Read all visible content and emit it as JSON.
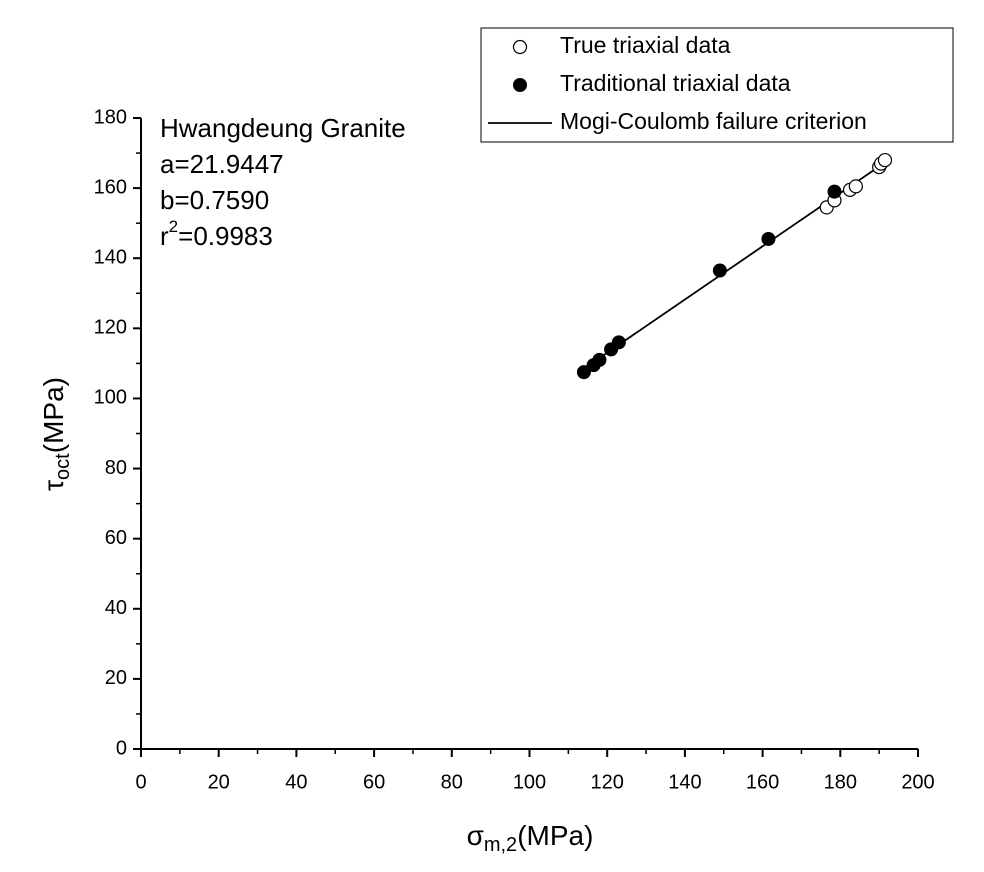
{
  "chart_data": {
    "type": "scatter",
    "xlabel": {
      "symbol": "σ",
      "subscript": "m,2",
      "unit": "(MPa)"
    },
    "ylabel": {
      "symbol": "τ",
      "subscript": "oct",
      "unit": "(MPa)"
    },
    "annotations": [
      "Hwangdeung Granite",
      "a=21.9447",
      "b=0.7590"
    ],
    "r2_annotation": {
      "base": "r",
      "superscript": "2",
      "rest": "=0.9983"
    },
    "xlim": [
      0,
      200
    ],
    "xticks": [
      0,
      20,
      40,
      60,
      80,
      100,
      120,
      140,
      160,
      180,
      200
    ],
    "xminorticks": [
      10,
      30,
      50,
      70,
      90,
      110,
      130,
      150,
      170,
      190
    ],
    "ylim": [
      0,
      180
    ],
    "yticks": [
      0,
      20,
      40,
      60,
      80,
      100,
      120,
      140,
      160,
      180
    ],
    "yminorticks": [
      10,
      30,
      50,
      70,
      90,
      110,
      130,
      150,
      170
    ],
    "legend": "top-right",
    "series": [
      {
        "name": "True triaxial data",
        "color": "#000000",
        "marker": "open-circle",
        "x": [
          176.5,
          178.5,
          182.5,
          184,
          190,
          190.5,
          191.5
        ],
        "values": [
          154.5,
          156.5,
          159.5,
          160.5,
          166,
          167,
          168
        ]
      },
      {
        "name": "Traditional triaxial data",
        "color": "#000000",
        "marker": "filled-circle",
        "x": [
          114,
          116.5,
          118,
          121,
          123,
          149,
          161.5,
          178.5
        ],
        "values": [
          107.5,
          109.5,
          111,
          114,
          116,
          136.5,
          145.5,
          159
        ]
      },
      {
        "name": "Mogi-Coulomb failure criterion",
        "color": "#000000",
        "marker": "line",
        "x": [
          114,
          191.5
        ],
        "values": [
          108.5,
          167.3
        ]
      }
    ]
  }
}
